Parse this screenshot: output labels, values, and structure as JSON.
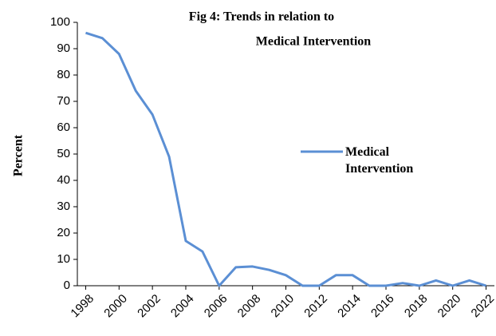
{
  "chart_data": {
    "type": "line",
    "title": [
      "Fig  4: Trends in relation to",
      "Medical Intervention"
    ],
    "y_label": "Percent",
    "x": [
      1998,
      1999,
      2000,
      2001,
      2002,
      2003,
      2004,
      2005,
      2006,
      2007,
      2008,
      2009,
      2010,
      2011,
      2012,
      2013,
      2014,
      2015,
      2016,
      2017,
      2018,
      2019,
      2020,
      2021,
      2022
    ],
    "series": [
      {
        "name": "Medical Intervention",
        "color": "#5b8fd4",
        "values": [
          96,
          94,
          88,
          74,
          65,
          49,
          17,
          13,
          0,
          7,
          7.3,
          6,
          4,
          0,
          0,
          4,
          4,
          0,
          0,
          1,
          0,
          2,
          0,
          2,
          0
        ]
      }
    ],
    "xlim": [
      1997.5,
      2022.5
    ],
    "xticks": [
      1998,
      2000,
      2002,
      2004,
      2006,
      2008,
      2010,
      2012,
      2014,
      2016,
      2018,
      2020,
      2022
    ],
    "ylim": [
      0,
      100
    ],
    "yticks": [
      0,
      10,
      20,
      30,
      40,
      50,
      60,
      70,
      80,
      90,
      100
    ],
    "grid": false
  }
}
